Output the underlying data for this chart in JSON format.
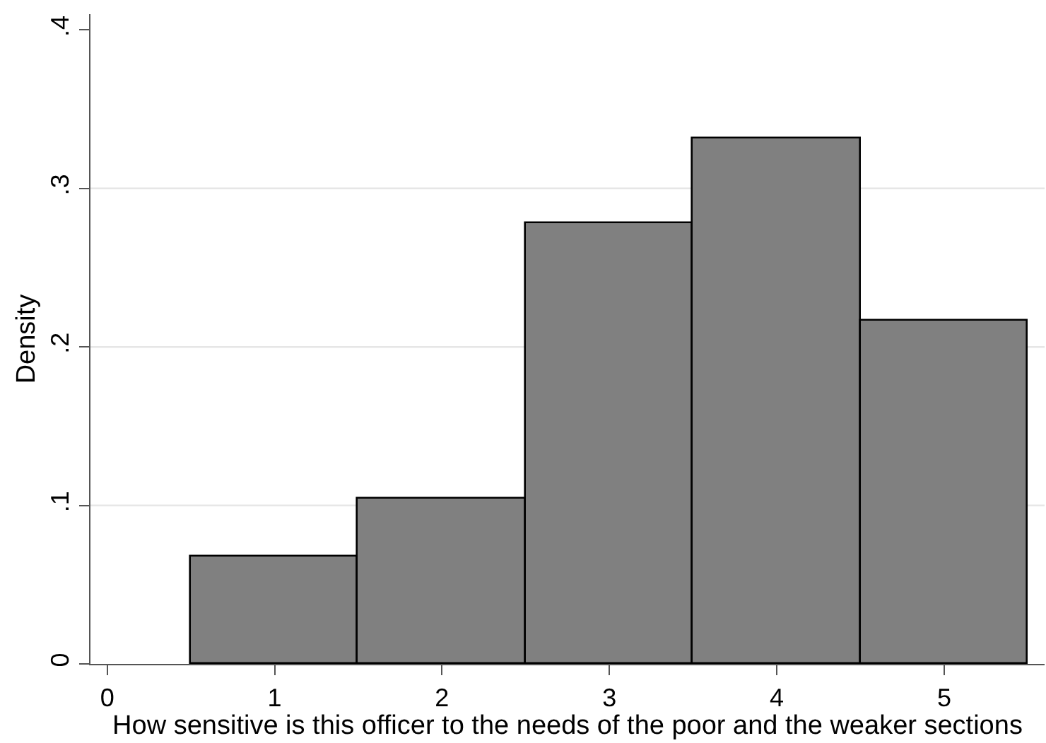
{
  "chart_data": {
    "type": "histogram",
    "xlabel": "How sensitive is this officer to the needs of the poor and the weaker sections",
    "ylabel": "Density",
    "bins": [
      0.5,
      1.5,
      2.5,
      3.5,
      4.5,
      5.5
    ],
    "values": [
      0.068,
      0.104,
      0.278,
      0.332,
      0.217
    ],
    "color": "#808080",
    "xlim": [
      -0.1,
      5.6
    ],
    "ylim": [
      0,
      0.41
    ],
    "xticks": [
      0,
      1,
      2,
      3,
      4,
      5
    ],
    "yticks": [
      0,
      {
        "value": 0.1,
        "label": ".1"
      },
      {
        "value": 0.2,
        "label": ".2"
      },
      {
        "value": 0.3,
        "label": ".3"
      },
      {
        "value": 0.4,
        "label": ".4"
      }
    ],
    "grid": "y"
  }
}
